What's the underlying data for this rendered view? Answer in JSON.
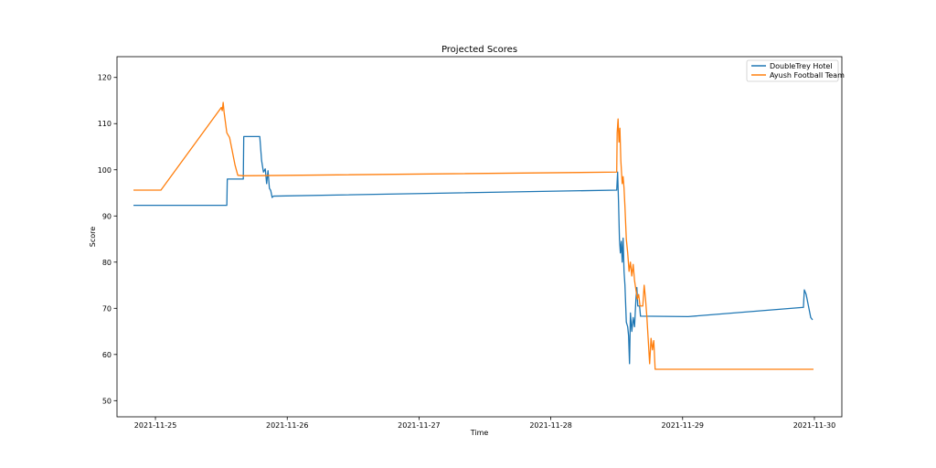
{
  "chart_data": {
    "type": "line",
    "title": "Projected Scores",
    "xlabel": "Time",
    "ylabel": "Score",
    "xlim": [
      "2021-11-24 17:00",
      "2021-11-30 05:00"
    ],
    "ylim": [
      46.5,
      124.5
    ],
    "x_ticks": [
      "2021-11-25",
      "2021-11-26",
      "2021-11-27",
      "2021-11-28",
      "2021-11-29",
      "2021-11-30"
    ],
    "y_ticks": [
      50,
      60,
      70,
      80,
      90,
      100,
      110,
      120
    ],
    "grid": false,
    "legend_position": "top-right",
    "series": [
      {
        "name": "DoubleTrey Hotel",
        "color": "#1f77b4",
        "points": [
          [
            "2021-11-24 20:00",
            92.3
          ],
          [
            "2021-11-25 13:00",
            92.3
          ],
          [
            "2021-11-25 13:05",
            98.0
          ],
          [
            "2021-11-25 16:00",
            98.0
          ],
          [
            "2021-11-25 16:05",
            107.2
          ],
          [
            "2021-11-25 19:00",
            107.2
          ],
          [
            "2021-11-25 19:20",
            102.0
          ],
          [
            "2021-11-25 19:40",
            99.5
          ],
          [
            "2021-11-25 20:00",
            100.2
          ],
          [
            "2021-11-25 20:15",
            97.0
          ],
          [
            "2021-11-25 20:30",
            99.8
          ],
          [
            "2021-11-25 20:45",
            96.0
          ],
          [
            "2021-11-25 21:00",
            95.5
          ],
          [
            "2021-11-25 21:15",
            94.0
          ],
          [
            "2021-11-25 21:30",
            94.3
          ],
          [
            "2021-11-28 12:00",
            95.6
          ],
          [
            "2021-11-28 12:10",
            99.5
          ],
          [
            "2021-11-28 12:20",
            93.0
          ],
          [
            "2021-11-28 12:30",
            85.0
          ],
          [
            "2021-11-28 12:40",
            82.0
          ],
          [
            "2021-11-28 12:50",
            84.5
          ],
          [
            "2021-11-28 13:00",
            80.0
          ],
          [
            "2021-11-28 13:10",
            85.2
          ],
          [
            "2021-11-28 13:20",
            78.0
          ],
          [
            "2021-11-28 13:30",
            75.0
          ],
          [
            "2021-11-28 13:45",
            67.0
          ],
          [
            "2021-11-28 14:00",
            66.0
          ],
          [
            "2021-11-28 14:10",
            64.0
          ],
          [
            "2021-11-28 14:20",
            58.0
          ],
          [
            "2021-11-28 14:30",
            69.0
          ],
          [
            "2021-11-28 14:45",
            65.0
          ],
          [
            "2021-11-28 15:00",
            68.0
          ],
          [
            "2021-11-28 15:15",
            66.0
          ],
          [
            "2021-11-28 15:30",
            72.0
          ],
          [
            "2021-11-28 15:40",
            74.5
          ],
          [
            "2021-11-28 15:50",
            70.5
          ],
          [
            "2021-11-28 16:10",
            70.5
          ],
          [
            "2021-11-28 16:20",
            68.3
          ],
          [
            "2021-11-29 01:00",
            68.2
          ],
          [
            "2021-11-29 22:00",
            70.2
          ],
          [
            "2021-11-29 22:10",
            74.0
          ],
          [
            "2021-11-29 22:30",
            73.0
          ],
          [
            "2021-11-29 23:00",
            70.0
          ],
          [
            "2021-11-29 23:20",
            68.0
          ],
          [
            "2021-11-29 23:40",
            67.5
          ]
        ]
      },
      {
        "name": "Ayush Football Team",
        "color": "#ff7f0e",
        "points": [
          [
            "2021-11-24 20:00",
            95.6
          ],
          [
            "2021-11-25 01:00",
            95.6
          ],
          [
            "2021-11-25 12:00",
            113.5
          ],
          [
            "2021-11-25 12:10",
            112.8
          ],
          [
            "2021-11-25 12:20",
            114.6
          ],
          [
            "2021-11-25 12:30",
            112.5
          ],
          [
            "2021-11-25 13:00",
            108.0
          ],
          [
            "2021-11-25 13:30",
            107.0
          ],
          [
            "2021-11-25 14:00",
            104.0
          ],
          [
            "2021-11-25 14:30",
            101.0
          ],
          [
            "2021-11-25 15:00",
            98.8
          ],
          [
            "2021-11-25 16:00",
            98.7
          ],
          [
            "2021-11-28 12:00",
            99.5
          ],
          [
            "2021-11-28 12:05",
            108.0
          ],
          [
            "2021-11-28 12:15",
            111.0
          ],
          [
            "2021-11-28 12:25",
            106.0
          ],
          [
            "2021-11-28 12:35",
            109.0
          ],
          [
            "2021-11-28 12:45",
            102.0
          ],
          [
            "2021-11-28 13:00",
            97.0
          ],
          [
            "2021-11-28 13:10",
            98.5
          ],
          [
            "2021-11-28 13:20",
            96.0
          ],
          [
            "2021-11-28 13:30",
            92.0
          ],
          [
            "2021-11-28 13:45",
            85.0
          ],
          [
            "2021-11-28 14:00",
            82.0
          ],
          [
            "2021-11-28 14:15",
            78.0
          ],
          [
            "2021-11-28 14:30",
            80.0
          ],
          [
            "2021-11-28 14:45",
            77.0
          ],
          [
            "2021-11-28 15:00",
            79.5
          ],
          [
            "2021-11-28 15:15",
            76.0
          ],
          [
            "2021-11-28 15:30",
            74.0
          ],
          [
            "2021-11-28 15:45",
            72.0
          ],
          [
            "2021-11-28 16:00",
            73.0
          ],
          [
            "2021-11-28 16:15",
            70.5
          ],
          [
            "2021-11-28 16:45",
            70.5
          ],
          [
            "2021-11-28 17:00",
            75.0
          ],
          [
            "2021-11-28 17:15",
            72.0
          ],
          [
            "2021-11-28 17:30",
            68.0
          ],
          [
            "2021-11-28 17:45",
            63.0
          ],
          [
            "2021-11-28 18:00",
            58.0
          ],
          [
            "2021-11-28 18:15",
            63.5
          ],
          [
            "2021-11-28 18:30",
            61.0
          ],
          [
            "2021-11-28 18:45",
            63.0
          ],
          [
            "2021-11-28 19:00",
            56.8
          ],
          [
            "2021-11-29 23:50",
            56.8
          ]
        ]
      }
    ]
  }
}
